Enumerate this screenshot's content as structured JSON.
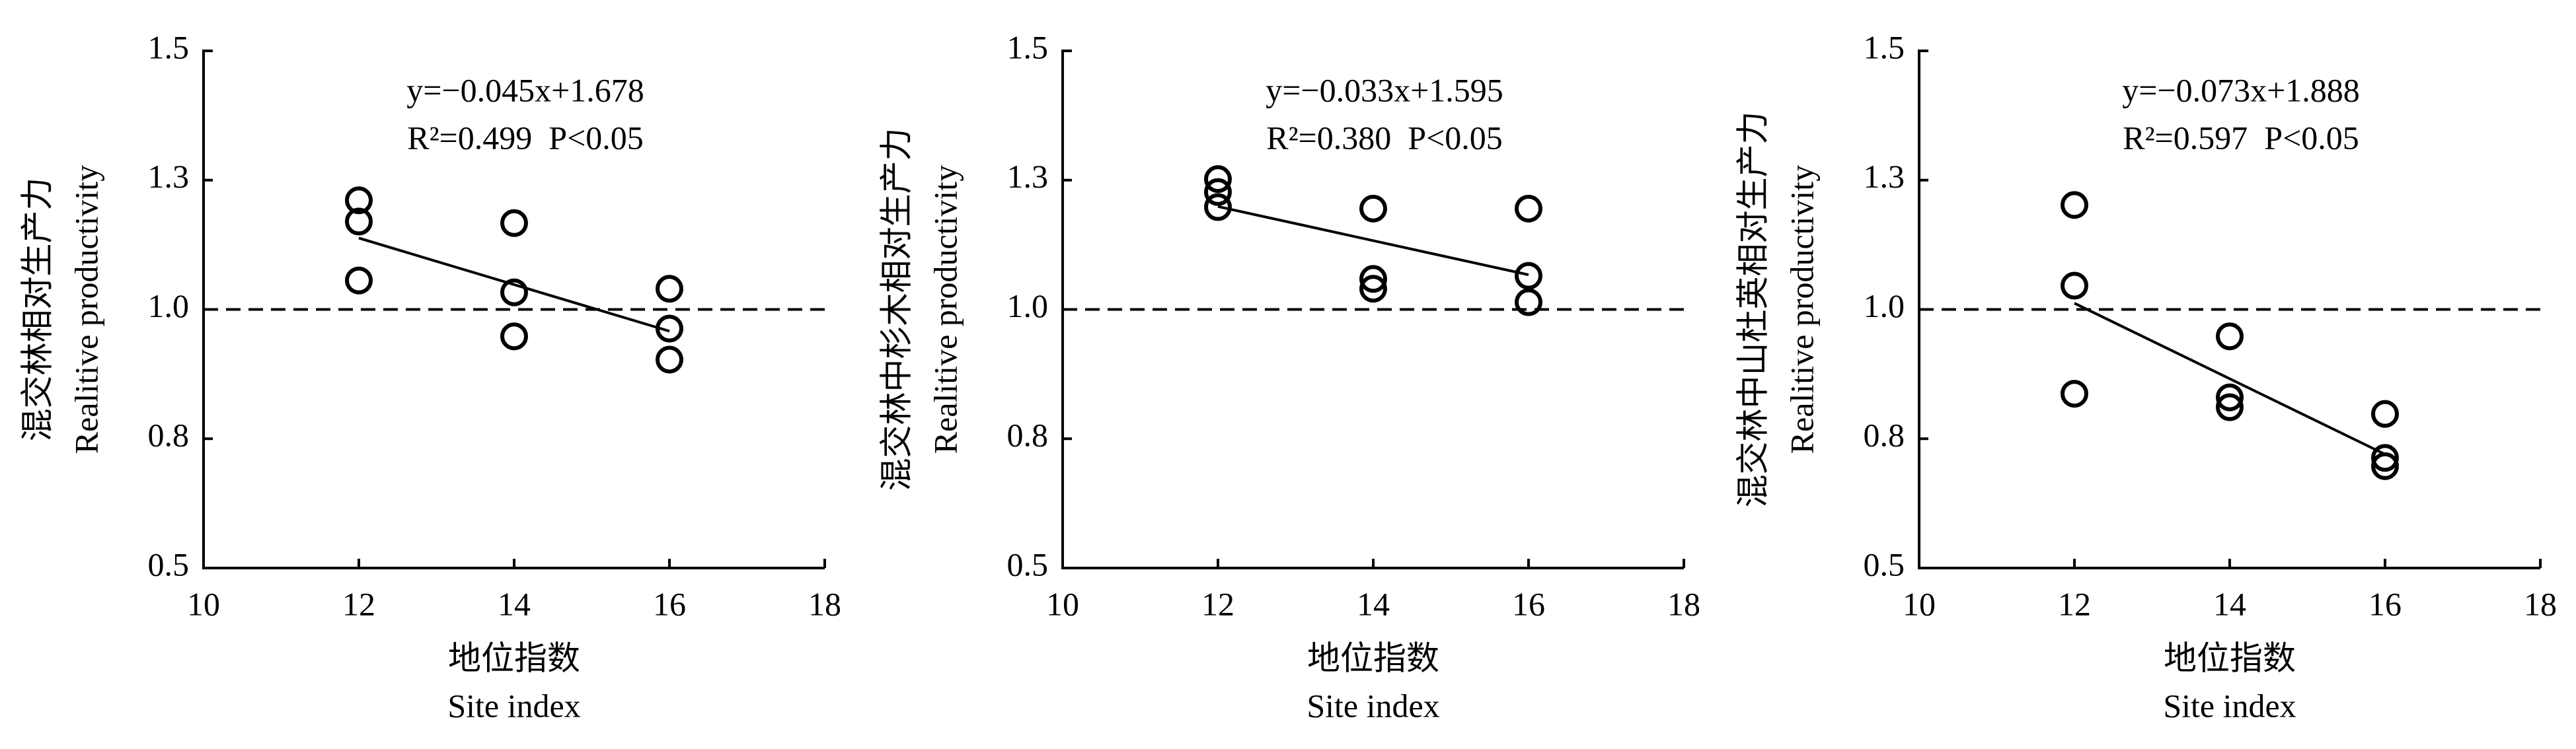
{
  "chart_data": [
    {
      "type": "scatter",
      "x_label": "地位指数",
      "x_label_en": "Site index",
      "y_label": "混交林相对生产力",
      "y_label_en": "Realitive productivity",
      "equation": "y=−0.045x+1.678",
      "stats": "R²=0.499  P<0.05",
      "fit": {
        "slope": -0.045,
        "intercept": 1.678
      },
      "hline": 1,
      "x": [
        12,
        12,
        12,
        14,
        14,
        14,
        16,
        16,
        16
      ],
      "series": [
        {
          "color": "#000000",
          "values": [
            1.211,
            1.17,
            1.056,
            1.167,
            1.033,
            0.948,
            1.04,
            0.963,
            0.903
          ]
        }
      ],
      "xlim": [
        10,
        18
      ],
      "xticks": [
        10,
        12,
        14,
        16,
        18
      ],
      "ylim": [
        0.5,
        1.5
      ],
      "yticks": [
        0.5,
        {
          "value": 0.75,
          "label": "0.8"
        },
        {
          "value": 1,
          "label": "1.0"
        },
        {
          "value": 1.25,
          "label": "1.3"
        },
        1.5
      ]
    },
    {
      "type": "scatter",
      "x_label": "地位指数",
      "x_label_en": "Site index",
      "y_label": "混交林中杉木相对生产力",
      "y_label_en": "Realitive productivity",
      "equation": "y=−0.033x+1.595",
      "stats": "R²=0.380  P<0.05",
      "fit": {
        "slope": -0.033,
        "intercept": 1.595
      },
      "hline": 1,
      "x": [
        12,
        12,
        12,
        14,
        14,
        14,
        16,
        16,
        16
      ],
      "series": [
        {
          "color": "#000000",
          "values": [
            1.252,
            1.227,
            1.198,
            1.195,
            1.059,
            1.04,
            1.195,
            1.065,
            1.014
          ]
        }
      ],
      "xlim": [
        10,
        18
      ],
      "xticks": [
        10,
        12,
        14,
        16,
        18
      ],
      "ylim": [
        0.5,
        1.5
      ],
      "yticks": [
        0.5,
        {
          "value": 0.75,
          "label": "0.8"
        },
        {
          "value": 1,
          "label": "1.0"
        },
        {
          "value": 1.25,
          "label": "1.3"
        },
        1.5
      ]
    },
    {
      "type": "scatter",
      "x_label": "地位指数",
      "x_label_en": "Site index",
      "y_label": "混交林中山杜英相对生产力",
      "y_label_en": "Realitive productivity",
      "equation": "y=−0.073x+1.888",
      "stats": "R²=0.597  P<0.05",
      "fit": {
        "slope": -0.073,
        "intercept": 1.888
      },
      "hline": 1,
      "x": [
        12,
        12,
        12,
        14,
        14,
        14,
        16,
        16,
        16
      ],
      "series": [
        {
          "color": "#000000",
          "values": [
            1.202,
            1.046,
            0.837,
            0.948,
            0.83,
            0.811,
            0.798,
            0.713,
            0.697
          ]
        }
      ],
      "xlim": [
        10,
        18
      ],
      "xticks": [
        10,
        12,
        14,
        16,
        18
      ],
      "ylim": [
        0.5,
        1.5
      ],
      "yticks": [
        0.5,
        {
          "value": 0.75,
          "label": "0.8"
        },
        {
          "value": 1,
          "label": "1.0"
        },
        {
          "value": 1.25,
          "label": "1.3"
        },
        1.5
      ]
    }
  ]
}
